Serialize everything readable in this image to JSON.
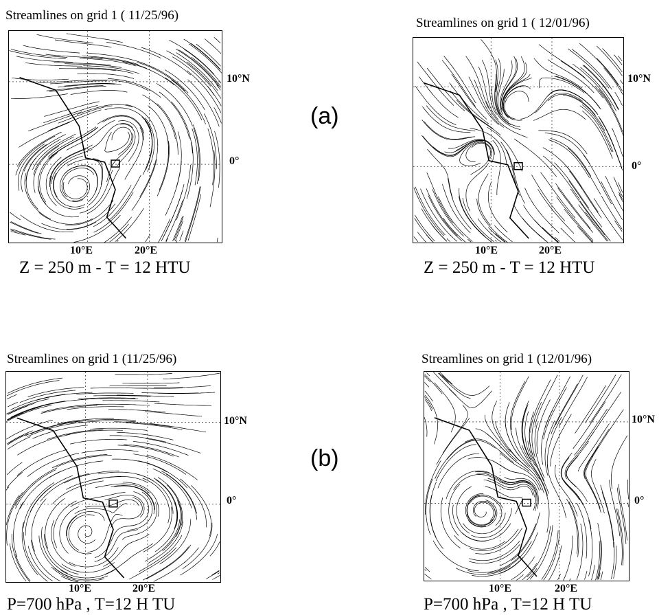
{
  "figure": {
    "row_a_label": "(a)",
    "row_b_label": "(b)",
    "panels": [
      {
        "title": "Streamlines on grid 1 ( 11/25/96)",
        "lat_labels": [
          "10°N",
          "0°"
        ],
        "lon_labels": [
          "10°E",
          "20°E"
        ],
        "caption": "Z = 250 m - T = 12 HTU"
      },
      {
        "title": "Streamlines on grid 1 ( 12/01/96)",
        "lat_labels": [
          "10°N",
          "0°"
        ],
        "lon_labels": [
          "10°E",
          "20°E"
        ],
        "caption": "Z = 250 m - T = 12 HTU"
      },
      {
        "title": "Streamlines on grid 1 (11/25/96)",
        "lat_labels": [
          "10°N",
          "0°"
        ],
        "lon_labels": [
          "10°E",
          "20°E"
        ],
        "caption": "P=700 hPa , T=12 H TU"
      },
      {
        "title": "Streamlines on grid 1 (12/01/96)",
        "lat_labels": [
          "10°N",
          "0°"
        ],
        "lon_labels": [
          "10°E",
          "20°E"
        ],
        "caption": "P=700 hPa , T=12 H TU"
      }
    ]
  }
}
